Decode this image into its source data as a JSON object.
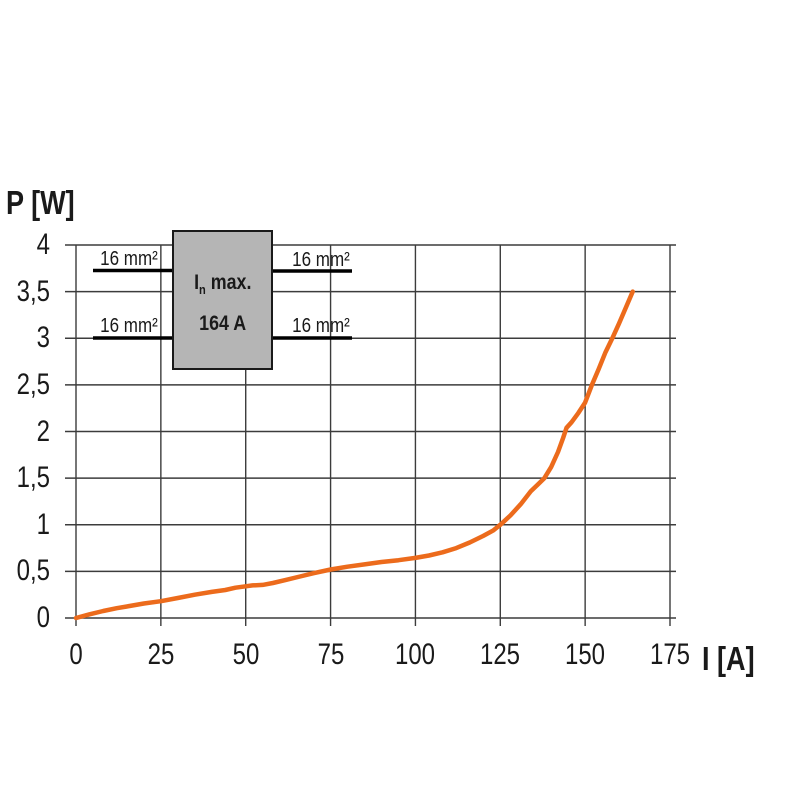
{
  "annotation_box": {
    "line1_main": "I",
    "line1_sub": "n",
    "line1_rest": " max.",
    "line2": "164 A",
    "wire_labels": [
      "16 mm²",
      "16 mm²",
      "16 mm²",
      "16 mm²"
    ]
  },
  "colors": {
    "curve": "#ec6b1c",
    "grid": "#3c3c3c",
    "wire": "#000000",
    "box_fill": "#b5b5b5",
    "box_border": "#1a1a1a",
    "text": "#1a1a1a",
    "background": "#ffffff"
  },
  "chart_data": {
    "type": "line",
    "title": "",
    "xlabel": "I [A]",
    "ylabel": "P [W]",
    "xlim": [
      0,
      175
    ],
    "ylim": [
      0,
      4
    ],
    "grid": true,
    "legend": false,
    "x_ticks": {
      "values": [
        0,
        25,
        50,
        75,
        100,
        125,
        150,
        175
      ],
      "labels": [
        "0",
        "25",
        "50",
        "75",
        "100",
        "125",
        "150",
        "175"
      ]
    },
    "y_ticks": {
      "values": [
        0,
        0.5,
        1,
        1.5,
        2,
        2.5,
        3,
        3.5,
        4
      ],
      "labels": [
        "0",
        "0,5",
        "1",
        "1,5",
        "2",
        "2,5",
        "3",
        "3,5",
        "4"
      ]
    },
    "series": [
      {
        "name": "power-dissipation-vs-current",
        "color": "#ec6b1c",
        "points": [
          [
            0,
            0
          ],
          [
            4,
            0.04
          ],
          [
            8,
            0.075
          ],
          [
            12,
            0.105
          ],
          [
            16,
            0.13
          ],
          [
            20,
            0.155
          ],
          [
            25,
            0.18
          ],
          [
            30,
            0.215
          ],
          [
            35,
            0.25
          ],
          [
            40,
            0.28
          ],
          [
            44,
            0.3
          ],
          [
            47,
            0.325
          ],
          [
            50,
            0.34
          ],
          [
            52,
            0.35
          ],
          [
            55,
            0.355
          ],
          [
            58,
            0.375
          ],
          [
            62,
            0.41
          ],
          [
            66,
            0.445
          ],
          [
            70,
            0.48
          ],
          [
            75,
            0.52
          ],
          [
            80,
            0.55
          ],
          [
            85,
            0.575
          ],
          [
            90,
            0.6
          ],
          [
            95,
            0.62
          ],
          [
            100,
            0.645
          ],
          [
            104,
            0.67
          ],
          [
            108,
            0.705
          ],
          [
            112,
            0.75
          ],
          [
            116,
            0.81
          ],
          [
            120,
            0.88
          ],
          [
            123,
            0.94
          ],
          [
            125,
            1.0
          ],
          [
            128,
            1.1
          ],
          [
            131,
            1.22
          ],
          [
            134,
            1.36
          ],
          [
            136,
            1.43
          ],
          [
            138,
            1.5
          ],
          [
            140,
            1.62
          ],
          [
            142,
            1.78
          ],
          [
            143.5,
            1.93
          ],
          [
            144.5,
            2.04
          ],
          [
            146,
            2.1
          ],
          [
            148,
            2.2
          ],
          [
            150,
            2.31
          ],
          [
            152,
            2.5
          ],
          [
            154,
            2.67
          ],
          [
            156,
            2.85
          ],
          [
            158,
            3.0
          ],
          [
            160,
            3.16
          ],
          [
            162,
            3.33
          ],
          [
            164,
            3.5
          ]
        ]
      }
    ],
    "annotations": [
      {
        "type": "device-box",
        "text": "In max. 164 A"
      },
      {
        "type": "wire-label",
        "text": "16 mm²",
        "count": 4
      }
    ]
  }
}
